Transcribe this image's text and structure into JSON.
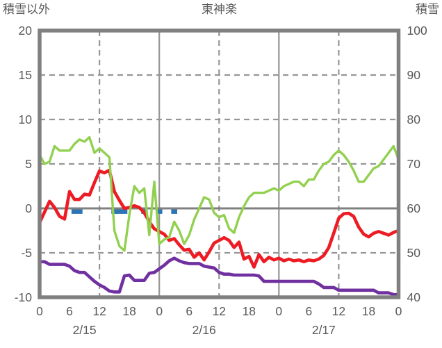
{
  "header": {
    "left_axis_title": "積雪以外",
    "station_title": "東神楽",
    "right_axis_title": "積雪"
  },
  "colors": {
    "text": "#595959",
    "axis_frame": "#808080",
    "gridline": "#969696",
    "zero_line": "#808080",
    "red_series": "#ED1C24",
    "green_series": "#92D050",
    "purple_series": "#7030A0",
    "blue_marker": "#2E75B6",
    "background": "#FFFFFF"
  },
  "chart_data": {
    "type": "line",
    "title": "東神楽",
    "left_axis": {
      "label": "積雪以外",
      "max": 20,
      "min": -10,
      "ticks": [
        20,
        15,
        10,
        5,
        0,
        -5,
        -10
      ]
    },
    "right_axis": {
      "label": "積雪",
      "max": 100,
      "min": 40,
      "ticks": [
        100,
        90,
        80,
        70,
        60,
        50,
        40
      ]
    },
    "x_axis": {
      "span_hours": 72,
      "hour_tick_step": 6,
      "hour_labels": [
        "0",
        "6",
        "12",
        "18",
        "0",
        "6",
        "12",
        "18",
        "0",
        "6",
        "12",
        "18",
        "0"
      ],
      "date_labels": [
        "2/15",
        "2/16",
        "2/17"
      ],
      "date_label_center_hours": [
        9,
        33,
        57
      ],
      "noon_gridline_hours": [
        12,
        36,
        60
      ],
      "midnight_gridline_hours": [
        24,
        48
      ]
    },
    "grid": {
      "horizontal_dashed_left_values": [
        15,
        10,
        5,
        -5
      ],
      "zero_line_left_value": 0
    },
    "series": [
      {
        "name": "red-line",
        "axis": "left",
        "color_key": "red_series",
        "values": [
          -1.6,
          -0.4,
          0.8,
          0.1,
          -0.9,
          -1.2,
          1.9,
          1.0,
          1.0,
          1.6,
          1.5,
          2.9,
          4.2,
          4.0,
          4.3,
          1.9,
          0.9,
          0.0,
          0.1,
          0.3,
          0.1,
          -0.5,
          -1.5,
          -2.3,
          -2.6,
          -2.9,
          -3.6,
          -3.4,
          -4.1,
          -4.7,
          -4.6,
          -5.5,
          -5.0,
          -5.8,
          -4.9,
          -3.9,
          -3.6,
          -3.3,
          -3.6,
          -4.4,
          -3.8,
          -5.7,
          -5.4,
          -6.6,
          -5.2,
          -6.0,
          -5.5,
          -5.8,
          -5.6,
          -5.9,
          -5.7,
          -5.9,
          -5.8,
          -6.0,
          -5.8,
          -5.9,
          -5.7,
          -5.3,
          -4.4,
          -2.8,
          -1.1,
          -0.6,
          -0.55,
          -0.9,
          -2.1,
          -2.9,
          -3.2,
          -2.8,
          -2.6,
          -2.8,
          -3.0,
          -2.7,
          -2.5
        ]
      },
      {
        "name": "green-line",
        "axis": "right",
        "color_key": "green_series",
        "values": [
          72,
          70,
          70.5,
          74,
          73,
          73,
          73,
          74.5,
          75.5,
          75,
          76,
          72.5,
          73.5,
          72.5,
          71.5,
          55,
          51.5,
          50.5,
          58.5,
          65,
          63.5,
          64.5,
          54,
          66,
          52,
          53,
          53.5,
          57,
          55,
          52,
          54,
          57.5,
          60,
          62.5,
          62,
          59,
          58,
          58.5,
          55.5,
          54.5,
          58,
          60.5,
          62.5,
          63.5,
          63.5,
          63.5,
          64,
          64.5,
          64,
          65,
          65.5,
          66,
          66,
          65,
          66.5,
          66.5,
          68.5,
          70,
          70.5,
          72,
          73,
          72,
          70.5,
          68.5,
          66,
          66,
          67.5,
          69,
          69.5,
          71,
          72.5,
          74,
          71
        ]
      },
      {
        "name": "purple-line",
        "axis": "left",
        "color_key": "purple_series",
        "values": [
          -6.0,
          -6.0,
          -6.3,
          -6.3,
          -6.3,
          -6.3,
          -6.5,
          -7.0,
          -7.2,
          -7.2,
          -7.7,
          -8.2,
          -8.6,
          -8.9,
          -9.3,
          -9.4,
          -9.4,
          -7.6,
          -7.5,
          -8.1,
          -8.1,
          -8.1,
          -7.3,
          -7.2,
          -6.8,
          -6.4,
          -5.9,
          -5.6,
          -5.9,
          -6.1,
          -6.2,
          -6.2,
          -6.2,
          -6.5,
          -6.6,
          -6.7,
          -7.2,
          -7.4,
          -7.4,
          -7.5,
          -7.5,
          -7.5,
          -7.5,
          -7.5,
          -7.6,
          -8.2,
          -8.2,
          -8.2,
          -8.2,
          -8.2,
          -8.2,
          -8.2,
          -8.2,
          -8.2,
          -8.2,
          -8.2,
          -8.5,
          -8.9,
          -8.9,
          -8.9,
          -9.2,
          -9.2,
          -9.2,
          -9.2,
          -9.2,
          -9.2,
          -9.2,
          -9.2,
          -9.5,
          -9.5,
          -9.5,
          -9.7,
          -9.7
        ]
      }
    ],
    "markers": {
      "name": "blue-squares",
      "axis": "left",
      "color_key": "blue_marker",
      "hours": [
        7,
        8,
        15,
        16,
        17,
        21,
        24,
        27
      ]
    }
  }
}
